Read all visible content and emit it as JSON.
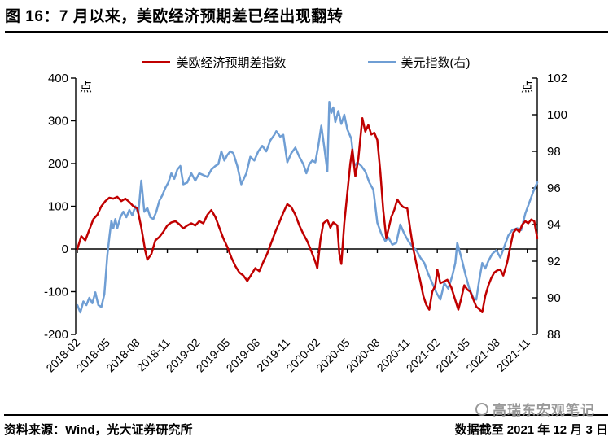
{
  "title": "图 16：7 月以来，美欧经济预期差已经出现翻转",
  "legend": [
    {
      "label": "美欧经济预期差指数",
      "color": "#c00000"
    },
    {
      "label": "美元指数(右)",
      "color": "#6f9ed4"
    }
  ],
  "footer": {
    "source": "资料来源：Wind，光大证券研究所",
    "note": "数据截至 2021 年 12 月 3 日"
  },
  "watermark": "高瑞东宏观笔记",
  "chart_data": {
    "type": "line",
    "unit_label_left": "点",
    "unit_label_right": "点",
    "x_start": "2018-02",
    "x_step_unit": "month (x = months since 2018-02)",
    "x_tick_labels": [
      "2018-02",
      "2018-05",
      "2018-08",
      "2018-11",
      "2019-02",
      "2019-05",
      "2019-08",
      "2019-11",
      "2020-02",
      "2020-05",
      "2020-08",
      "2020-11",
      "2021-02",
      "2021-05",
      "2021-08",
      "2021-11"
    ],
    "left_axis": {
      "min": -200,
      "max": 400,
      "ticks": [
        400,
        300,
        200,
        100,
        0,
        -100,
        -200
      ]
    },
    "right_axis": {
      "min": 88,
      "max": 102,
      "ticks": [
        102,
        100,
        98,
        96,
        94,
        92,
        90,
        88
      ]
    },
    "grid": false,
    "legend_position": "top",
    "series": [
      {
        "name": "美欧经济预期差指数",
        "axis": "left",
        "color": "#c00000",
        "points": [
          [
            0,
            0
          ],
          [
            0.4,
            30
          ],
          [
            0.8,
            20
          ],
          [
            1.2,
            45
          ],
          [
            1.6,
            70
          ],
          [
            2,
            80
          ],
          [
            2.4,
            100
          ],
          [
            2.8,
            112
          ],
          [
            3.2,
            120
          ],
          [
            3.6,
            118
          ],
          [
            4,
            122
          ],
          [
            4.4,
            112
          ],
          [
            4.8,
            118
          ],
          [
            5.2,
            110
          ],
          [
            5.6,
            100
          ],
          [
            6,
            95
          ],
          [
            6.4,
            50
          ],
          [
            6.8,
            -5
          ],
          [
            7,
            -25
          ],
          [
            7.4,
            -12
          ],
          [
            7.8,
            20
          ],
          [
            8.2,
            28
          ],
          [
            8.6,
            40
          ],
          [
            9,
            55
          ],
          [
            9.4,
            62
          ],
          [
            9.8,
            65
          ],
          [
            10.2,
            58
          ],
          [
            10.6,
            48
          ],
          [
            11,
            55
          ],
          [
            11.4,
            60
          ],
          [
            11.8,
            55
          ],
          [
            12.2,
            65
          ],
          [
            12.6,
            60
          ],
          [
            13,
            80
          ],
          [
            13.4,
            91
          ],
          [
            13.8,
            75
          ],
          [
            14.2,
            50
          ],
          [
            14.6,
            25
          ],
          [
            15,
            5
          ],
          [
            15.4,
            -20
          ],
          [
            15.8,
            -40
          ],
          [
            16.2,
            -55
          ],
          [
            16.6,
            -62
          ],
          [
            17,
            -75
          ],
          [
            17.4,
            -60
          ],
          [
            17.8,
            -45
          ],
          [
            18.2,
            -52
          ],
          [
            18.6,
            -30
          ],
          [
            19,
            -10
          ],
          [
            19.4,
            15
          ],
          [
            19.8,
            40
          ],
          [
            20.2,
            62
          ],
          [
            20.6,
            85
          ],
          [
            21,
            105
          ],
          [
            21.4,
            98
          ],
          [
            21.8,
            80
          ],
          [
            22.2,
            55
          ],
          [
            22.6,
            35
          ],
          [
            23,
            18
          ],
          [
            23.4,
            -5
          ],
          [
            23.8,
            -30
          ],
          [
            24,
            -45
          ],
          [
            24.3,
            20
          ],
          [
            24.6,
            60
          ],
          [
            25,
            68
          ],
          [
            25.3,
            50
          ],
          [
            25.6,
            62
          ],
          [
            26,
            55
          ],
          [
            26.2,
            -10
          ],
          [
            26.4,
            -35
          ],
          [
            26.7,
            60
          ],
          [
            27,
            130
          ],
          [
            27.3,
            200
          ],
          [
            27.5,
            233
          ],
          [
            27.8,
            170
          ],
          [
            28.1,
            210
          ],
          [
            28.5,
            306
          ],
          [
            28.8,
            275
          ],
          [
            29.1,
            290
          ],
          [
            29.4,
            268
          ],
          [
            29.7,
            272
          ],
          [
            30,
            255
          ],
          [
            30.3,
            180
          ],
          [
            30.6,
            90
          ],
          [
            30.9,
            25
          ],
          [
            31.4,
            75
          ],
          [
            31.7,
            92
          ],
          [
            32,
            116
          ],
          [
            32.3,
            105
          ],
          [
            32.6,
            98
          ],
          [
            33,
            95
          ],
          [
            33.3,
            45
          ],
          [
            33.6,
            0
          ],
          [
            34,
            -45
          ],
          [
            34.3,
            -75
          ],
          [
            34.6,
            -110
          ],
          [
            34.9,
            -131
          ],
          [
            35.2,
            -142
          ],
          [
            35.5,
            -100
          ],
          [
            35.8,
            -86
          ],
          [
            36,
            -48
          ],
          [
            36.3,
            -80
          ],
          [
            36.6,
            -77
          ],
          [
            37,
            -72
          ],
          [
            37.4,
            -90
          ],
          [
            37.8,
            -120
          ],
          [
            38.1,
            -142
          ],
          [
            38.4,
            -115
          ],
          [
            38.7,
            -85
          ],
          [
            39,
            -95
          ],
          [
            39.3,
            -100
          ],
          [
            39.6,
            -118
          ],
          [
            39.9,
            -135
          ],
          [
            40.2,
            -141
          ],
          [
            40.5,
            -148
          ],
          [
            40.8,
            -110
          ],
          [
            41.1,
            -86
          ],
          [
            41.4,
            -68
          ],
          [
            41.7,
            -55
          ],
          [
            42,
            -50
          ],
          [
            42.3,
            -48
          ],
          [
            42.6,
            -62
          ],
          [
            43,
            -30
          ],
          [
            43.3,
            5
          ],
          [
            43.6,
            38
          ],
          [
            43.9,
            47
          ],
          [
            44.2,
            40
          ],
          [
            44.5,
            57
          ],
          [
            44.8,
            65
          ],
          [
            45.1,
            60
          ],
          [
            45.4,
            69
          ],
          [
            45.7,
            65
          ],
          [
            46,
            25
          ]
        ]
      },
      {
        "name": "美元指数(右)",
        "axis": "right",
        "color": "#6f9ed4",
        "points": [
          [
            0,
            89.6
          ],
          [
            0.3,
            89.2
          ],
          [
            0.6,
            89.8
          ],
          [
            0.9,
            89.6
          ],
          [
            1.2,
            90.0
          ],
          [
            1.5,
            89.7
          ],
          [
            1.8,
            90.3
          ],
          [
            2.1,
            89.6
          ],
          [
            2.4,
            89.5
          ],
          [
            2.7,
            90.2
          ],
          [
            3,
            92.3
          ],
          [
            3.2,
            93.3
          ],
          [
            3.4,
            94.2
          ],
          [
            3.6,
            93.8
          ],
          [
            3.8,
            94.3
          ],
          [
            4,
            93.8
          ],
          [
            4.3,
            94.4
          ],
          [
            4.6,
            94.7
          ],
          [
            4.9,
            94.4
          ],
          [
            5.2,
            94.8
          ],
          [
            5.5,
            94.5
          ],
          [
            5.8,
            95.0
          ],
          [
            6.1,
            94.6
          ],
          [
            6.4,
            96.4
          ],
          [
            6.7,
            94.7
          ],
          [
            7,
            94.9
          ],
          [
            7.3,
            94.4
          ],
          [
            7.6,
            94.3
          ],
          [
            7.9,
            94.7
          ],
          [
            8.2,
            95.3
          ],
          [
            8.5,
            95.6
          ],
          [
            8.8,
            96.0
          ],
          [
            9.1,
            96.3
          ],
          [
            9.4,
            96.8
          ],
          [
            9.7,
            96.5
          ],
          [
            10,
            97.0
          ],
          [
            10.3,
            97.2
          ],
          [
            10.6,
            96.2
          ],
          [
            11,
            96.3
          ],
          [
            11.4,
            96.8
          ],
          [
            11.8,
            96.4
          ],
          [
            12.2,
            96.8
          ],
          [
            12.6,
            96.7
          ],
          [
            13,
            96.6
          ],
          [
            13.4,
            97.0
          ],
          [
            13.8,
            97.2
          ],
          [
            14.1,
            97.3
          ],
          [
            14.4,
            98.0
          ],
          [
            14.7,
            97.5
          ],
          [
            15,
            97.8
          ],
          [
            15.3,
            98.0
          ],
          [
            15.6,
            97.9
          ],
          [
            16,
            97.2
          ],
          [
            16.4,
            96.2
          ],
          [
            16.9,
            96.8
          ],
          [
            17.3,
            97.7
          ],
          [
            17.7,
            97.5
          ],
          [
            18.1,
            98.0
          ],
          [
            18.5,
            98.3
          ],
          [
            18.9,
            98.0
          ],
          [
            19.3,
            98.6
          ],
          [
            19.7,
            98.9
          ],
          [
            19.9,
            99.1
          ],
          [
            20.3,
            98.8
          ],
          [
            20.6,
            98.9
          ],
          [
            21,
            97.4
          ],
          [
            21.4,
            97.9
          ],
          [
            21.8,
            98.2
          ],
          [
            22.2,
            97.7
          ],
          [
            22.6,
            97.3
          ],
          [
            22.9,
            96.8
          ],
          [
            23.2,
            97.3
          ],
          [
            23.5,
            97.5
          ],
          [
            23.8,
            97.4
          ],
          [
            24.1,
            98.3
          ],
          [
            24.4,
            99.4
          ],
          [
            24.7,
            98.2
          ],
          [
            25,
            96.9
          ],
          [
            25.2,
            100.7
          ],
          [
            25.4,
            100.1
          ],
          [
            25.6,
            100.4
          ],
          [
            25.8,
            99.6
          ],
          [
            26.1,
            100.2
          ],
          [
            26.4,
            99.5
          ],
          [
            26.7,
            100.0
          ],
          [
            27,
            99.2
          ],
          [
            27.4,
            98.7
          ],
          [
            27.7,
            97.2
          ],
          [
            28,
            97.4
          ],
          [
            28.4,
            97.2
          ],
          [
            28.8,
            96.9
          ],
          [
            29.2,
            96.3
          ],
          [
            29.6,
            95.9
          ],
          [
            30,
            94.1
          ],
          [
            30.4,
            93.5
          ],
          [
            30.8,
            93.1
          ],
          [
            31.1,
            93.3
          ],
          [
            31.5,
            92.9
          ],
          [
            31.9,
            93.0
          ],
          [
            32.3,
            94.0
          ],
          [
            32.7,
            93.5
          ],
          [
            33.1,
            93.1
          ],
          [
            33.5,
            92.8
          ],
          [
            33.9,
            92.6
          ],
          [
            34.3,
            92.2
          ],
          [
            34.7,
            91.9
          ],
          [
            35.1,
            91.3
          ],
          [
            35.5,
            90.8
          ],
          [
            35.9,
            90.3
          ],
          [
            36.3,
            89.9
          ],
          [
            36.7,
            90.8
          ],
          [
            37.1,
            90.5
          ],
          [
            37.5,
            91.2
          ],
          [
            37.8,
            91.9
          ],
          [
            38,
            93.0
          ],
          [
            38.4,
            92.2
          ],
          [
            38.8,
            91.3
          ],
          [
            39.2,
            90.5
          ],
          [
            39.6,
            90.0
          ],
          [
            39.9,
            89.9
          ],
          [
            40.2,
            91.0
          ],
          [
            40.5,
            91.9
          ],
          [
            40.8,
            91.6
          ],
          [
            41.1,
            92.0
          ],
          [
            41.5,
            92.4
          ],
          [
            41.9,
            92.6
          ],
          [
            42.3,
            92.2
          ],
          [
            42.7,
            92.8
          ],
          [
            43.1,
            93.4
          ],
          [
            43.5,
            93.7
          ],
          [
            44,
            93.8
          ],
          [
            44.4,
            93.7
          ],
          [
            44.8,
            94.6
          ],
          [
            45.2,
            95.2
          ],
          [
            45.6,
            95.8
          ],
          [
            46,
            96.3
          ]
        ]
      }
    ]
  }
}
